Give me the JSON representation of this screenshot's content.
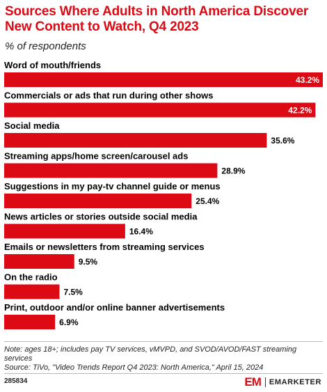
{
  "title": "Sources Where Adults in North America Discover New Content to Watch, Q4 2023",
  "subtitle": "% of respondents",
  "footer": {
    "note": "Note: ages 18+; includes pay TV services, vMVPD, and SVOD/AVOD/FAST streaming services",
    "source": "Source: TiVo, \"Video Trends Report Q4 2023: North America,\" April 15, 2024",
    "chart_id": "285834",
    "brand_mark": "EM",
    "brand_name": "EMARKETER"
  },
  "colors": {
    "bar": "#dc0a14",
    "title": "#dc0a14"
  },
  "chart_data": {
    "type": "bar",
    "orientation": "horizontal",
    "categories": [
      "Word of mouth/friends",
      "Commercials or ads that run during other shows",
      "Social media",
      "Streaming apps/home screen/carousel ads",
      "Suggestions in my pay-tv channel guide or menus",
      "News articles or stories outside social media",
      "Emails or newsletters from streaming services",
      "On the radio",
      "Print, outdoor and/or online banner advertisements"
    ],
    "values": [
      43.2,
      42.2,
      35.6,
      28.9,
      25.4,
      16.4,
      9.5,
      7.5,
      6.9
    ],
    "value_labels": [
      "43.2%",
      "42.2%",
      "35.6%",
      "28.9%",
      "25.4%",
      "16.4%",
      "9.5%",
      "7.5%",
      "6.9%"
    ],
    "xlim": [
      0,
      43.2
    ]
  }
}
